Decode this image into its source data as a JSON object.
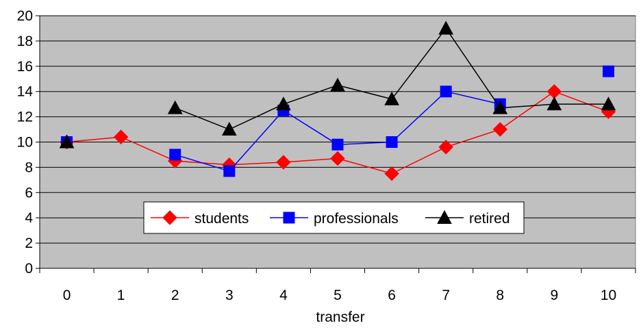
{
  "chart_data": {
    "type": "line",
    "title": "",
    "xlabel": "transfer",
    "ylabel": "",
    "x": [
      0,
      1,
      2,
      3,
      4,
      5,
      6,
      7,
      8,
      9,
      10
    ],
    "x_tick_labels": [
      "0",
      "1",
      "2",
      "3",
      "4",
      "5",
      "6",
      "7",
      "8",
      "9",
      "10"
    ],
    "ylim": [
      0,
      20
    ],
    "y_ticks": [
      0,
      2,
      4,
      6,
      8,
      10,
      12,
      14,
      16,
      18,
      20
    ],
    "y_tick_labels": [
      "0",
      "2",
      "4",
      "6",
      "8",
      "10",
      "12",
      "14",
      "16",
      "18",
      "20"
    ],
    "grid": true,
    "plot_background": "#c0c0c0",
    "legend_position": "bottom-center inside plot",
    "series": [
      {
        "name": "students",
        "color": "#ff0000",
        "marker": "diamond",
        "segments": [
          [
            0,
            1,
            2,
            3,
            4,
            5,
            6,
            7,
            8,
            9,
            10
          ]
        ],
        "values": [
          10.0,
          10.4,
          8.5,
          8.2,
          8.4,
          8.7,
          7.5,
          9.6,
          11.0,
          14.0,
          12.4
        ]
      },
      {
        "name": "professionals",
        "color": "#0000ff",
        "marker": "square",
        "segments": [
          [
            0
          ],
          [
            2,
            3,
            4,
            5,
            6,
            7,
            8
          ],
          [
            10
          ]
        ],
        "values": [
          10.0,
          null,
          9.0,
          7.7,
          12.5,
          9.8,
          10.0,
          14.0,
          13.0,
          null,
          15.6
        ]
      },
      {
        "name": "retired",
        "color": "#000000",
        "marker": "triangle",
        "segments": [
          [
            0
          ],
          [
            2,
            3,
            4,
            5,
            6,
            7,
            8,
            9,
            10
          ]
        ],
        "values": [
          10.0,
          null,
          12.7,
          11.0,
          13.0,
          14.5,
          13.4,
          19.0,
          12.7,
          13.0,
          13.0
        ]
      }
    ]
  }
}
